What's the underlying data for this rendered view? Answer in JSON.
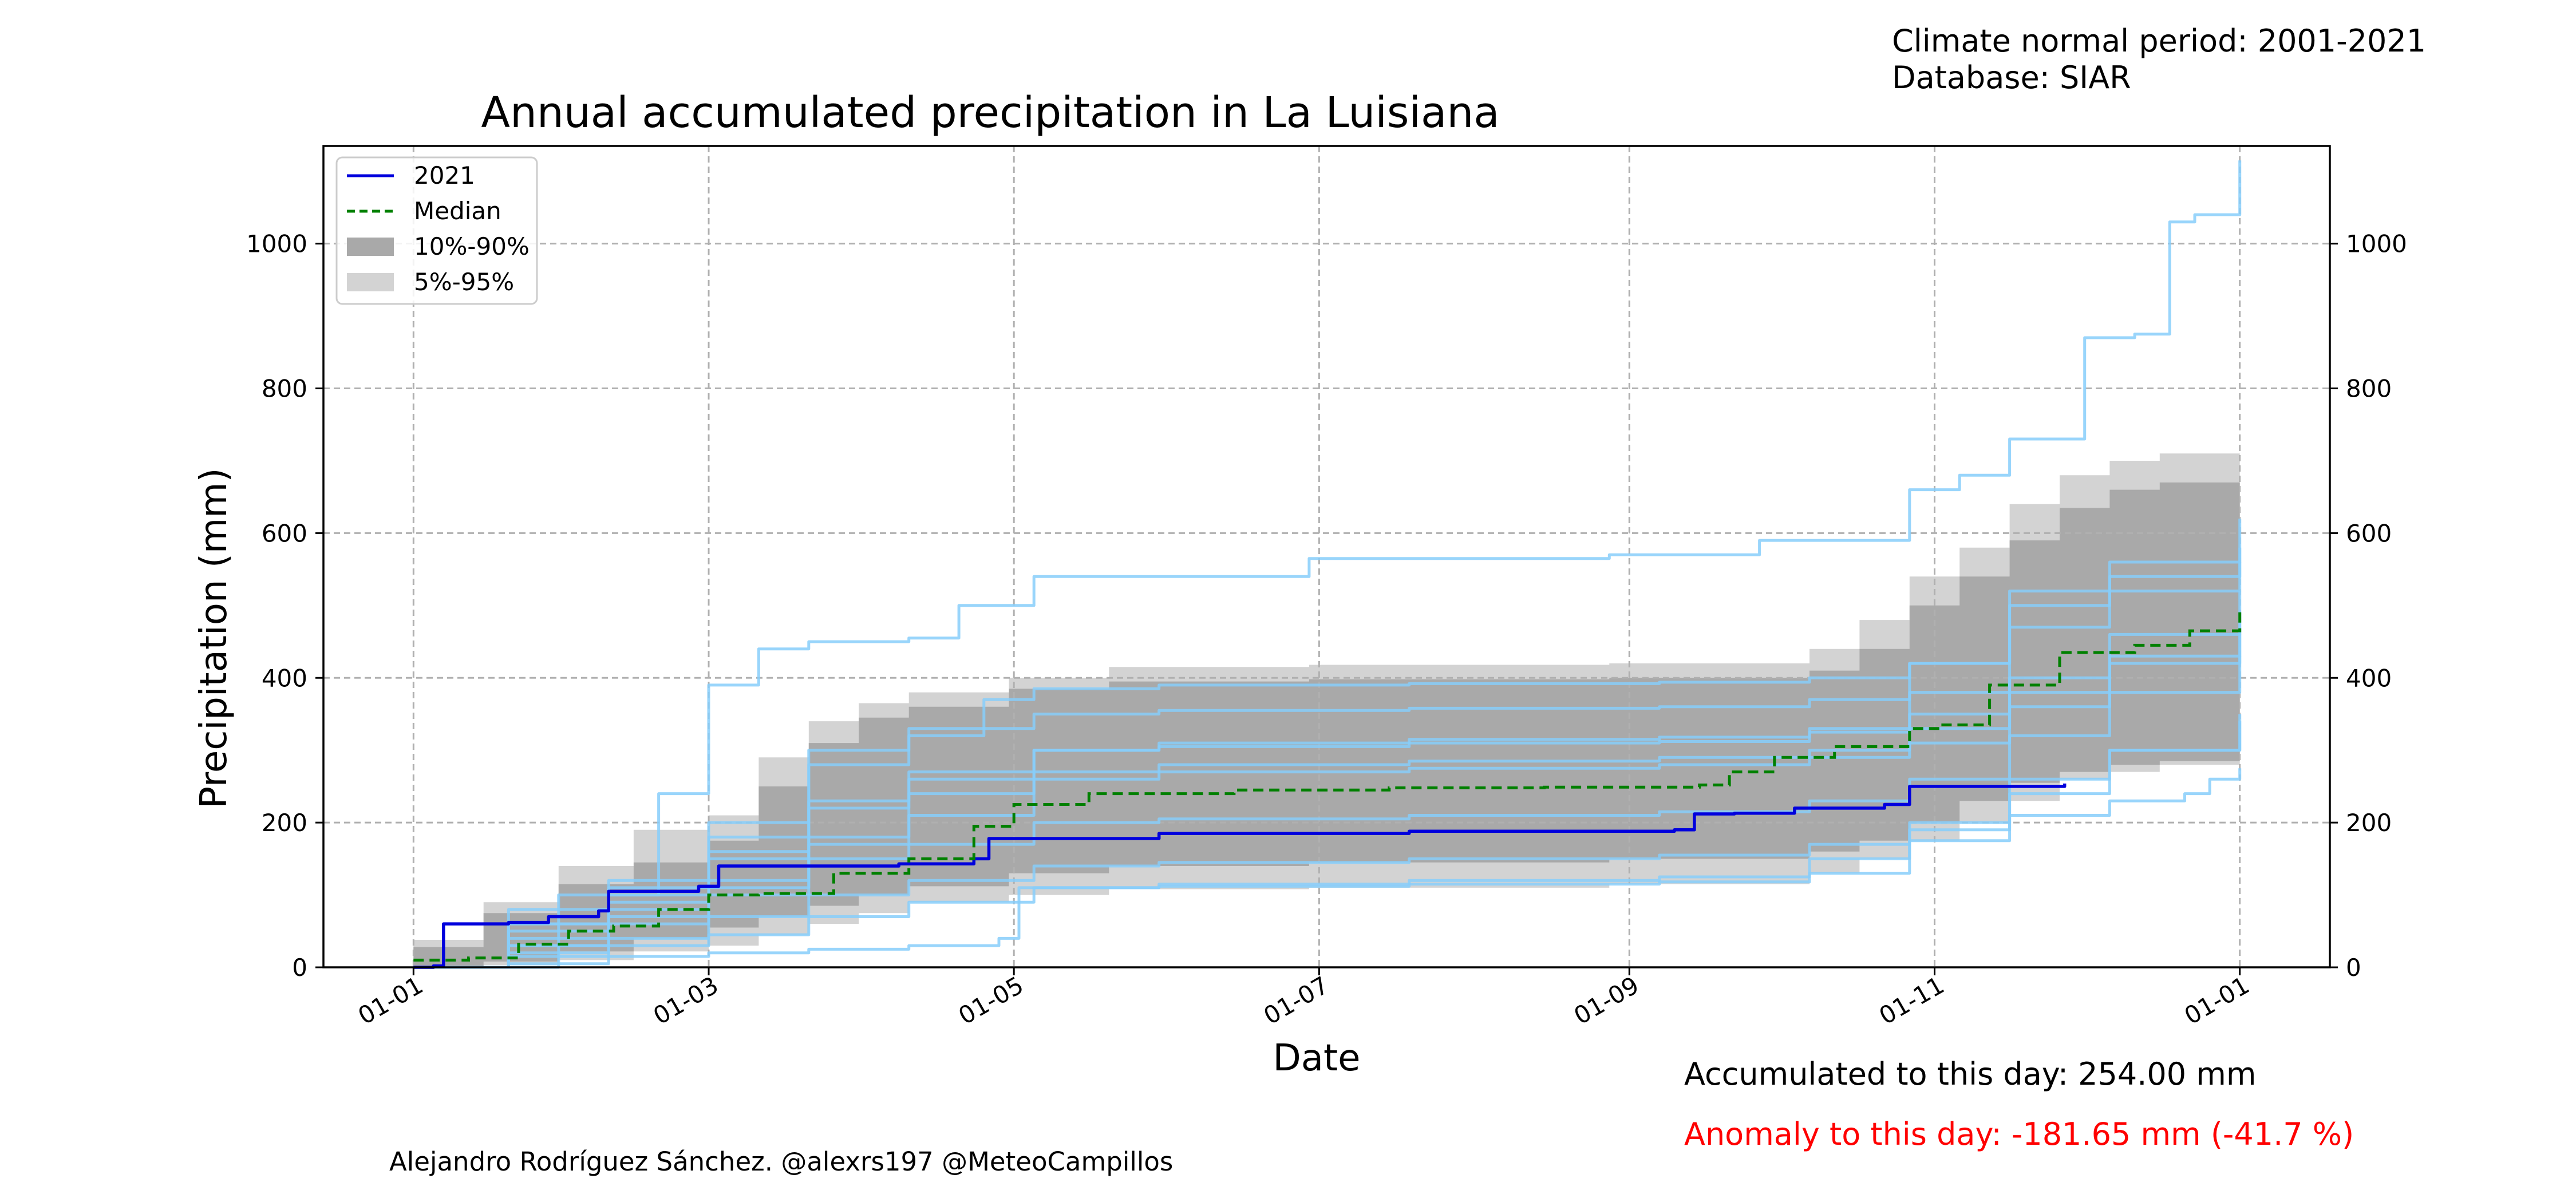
{
  "header": {
    "climate_normal": "Climate normal period: 2001-2021",
    "database": "Database: SIAR"
  },
  "footer": {
    "accumulated": "Accumulated to this day: 254.00 mm",
    "anomaly": "Anomaly to this day: -181.65 mm (-41.7 %)",
    "credit": "Alejandro Rodríguez Sánchez. @alexrs197 @MeteoCampillos"
  },
  "colors": {
    "current_year": "#0000dd",
    "median": "#008000",
    "band_10_90": "#a9a9a9",
    "band_5_95": "#d3d3d3",
    "historical_years": "#87cefa",
    "anomaly_text": "#ff0000"
  },
  "chart_data": {
    "type": "line",
    "title": "Annual accumulated precipitation in La Luisiana",
    "xlabel": "Date",
    "ylabel": "Precipitation (mm)",
    "x_ticks": [
      "01-01",
      "01-03",
      "01-05",
      "01-07",
      "01-09",
      "01-11",
      "01-01"
    ],
    "x_tick_days": [
      1,
      60,
      121,
      182,
      244,
      305,
      366
    ],
    "y_ticks": [
      0,
      200,
      400,
      600,
      800,
      1000
    ],
    "xlim": [
      -17,
      384
    ],
    "ylim": [
      0,
      1135
    ],
    "grid": true,
    "legend_position": "upper-left",
    "legend": [
      "2021",
      "Median",
      "10%-90%",
      "5%-95%"
    ],
    "series": [
      {
        "name": "2021",
        "style": "solid",
        "x": [
          1,
          5,
          7,
          20,
          28,
          38,
          40,
          58,
          62,
          98,
          113,
          116,
          150,
          200,
          253,
          257,
          265,
          277,
          295,
          300,
          331
        ],
        "y": [
          0,
          2,
          60,
          62,
          70,
          78,
          105,
          112,
          140,
          143,
          150,
          178,
          185,
          188,
          190,
          212,
          213,
          220,
          225,
          250,
          254
        ]
      },
      {
        "name": "Median",
        "style": "dashed",
        "x": [
          1,
          12,
          22,
          32,
          41,
          50,
          60,
          70,
          85,
          100,
          113,
          121,
          136,
          165,
          196,
          227,
          258,
          264,
          273,
          285,
          300,
          306,
          316,
          330,
          345,
          356,
          366
        ],
        "y": [
          10,
          13,
          32,
          50,
          57,
          80,
          100,
          102,
          130,
          150,
          195,
          225,
          240,
          245,
          248,
          249,
          252,
          270,
          290,
          305,
          330,
          335,
          390,
          435,
          445,
          465,
          492
        ]
      }
    ],
    "bands": [
      {
        "name": "5%-95%",
        "x": [
          1,
          15,
          30,
          45,
          60,
          70,
          80,
          90,
          100,
          120,
          140,
          180,
          240,
          280,
          290,
          300,
          310,
          320,
          330,
          340,
          350,
          366
        ],
        "upper": [
          38,
          90,
          140,
          190,
          210,
          290,
          340,
          365,
          380,
          400,
          415,
          418,
          420,
          440,
          480,
          540,
          580,
          640,
          680,
          700,
          710,
          715
        ],
        "lower": [
          0,
          3,
          10,
          22,
          30,
          45,
          60,
          75,
          90,
          100,
          108,
          110,
          115,
          130,
          150,
          175,
          200,
          230,
          260,
          270,
          280,
          290
        ]
      },
      {
        "name": "10%-90%",
        "x": [
          1,
          15,
          30,
          45,
          60,
          70,
          80,
          90,
          100,
          120,
          140,
          180,
          240,
          280,
          290,
          300,
          310,
          320,
          330,
          340,
          350,
          366
        ],
        "upper": [
          28,
          75,
          115,
          145,
          175,
          250,
          310,
          345,
          360,
          385,
          395,
          398,
          400,
          410,
          440,
          500,
          540,
          590,
          635,
          660,
          670,
          675
        ],
        "lower": [
          2,
          8,
          22,
          40,
          55,
          70,
          85,
          100,
          112,
          130,
          140,
          145,
          150,
          160,
          175,
          200,
          230,
          255,
          270,
          280,
          285,
          290
        ]
      }
    ],
    "historical": [
      {
        "x": [
          1,
          30,
          50,
          60,
          70,
          80,
          100,
          110,
          125,
          180,
          240,
          270,
          300,
          310,
          320,
          335,
          345,
          352,
          357,
          366
        ],
        "y": [
          0,
          100,
          240,
          390,
          440,
          450,
          455,
          500,
          540,
          565,
          570,
          590,
          660,
          680,
          730,
          870,
          875,
          1030,
          1040,
          1115
        ]
      },
      {
        "x": [
          1,
          20,
          40,
          60,
          80,
          100,
          115,
          125,
          150,
          200,
          250,
          280,
          300,
          320,
          340,
          366
        ],
        "y": [
          0,
          60,
          110,
          180,
          280,
          320,
          370,
          385,
          390,
          392,
          394,
          400,
          420,
          520,
          560,
          620
        ]
      },
      {
        "x": [
          1,
          20,
          40,
          60,
          80,
          100,
          125,
          150,
          200,
          250,
          280,
          300,
          320,
          340,
          366
        ],
        "y": [
          0,
          40,
          90,
          150,
          230,
          270,
          300,
          310,
          315,
          318,
          330,
          380,
          470,
          520,
          580
        ]
      },
      {
        "x": [
          1,
          20,
          40,
          60,
          80,
          100,
          125,
          150,
          200,
          250,
          280,
          300,
          320,
          340,
          366
        ],
        "y": [
          0,
          50,
          80,
          120,
          170,
          210,
          260,
          270,
          275,
          280,
          290,
          310,
          360,
          430,
          520
        ]
      },
      {
        "x": [
          1,
          20,
          40,
          60,
          80,
          100,
          125,
          150,
          200,
          250,
          280,
          300,
          320,
          340,
          366
        ],
        "y": [
          0,
          30,
          60,
          100,
          150,
          170,
          200,
          205,
          210,
          215,
          230,
          260,
          320,
          380,
          430
        ]
      },
      {
        "x": [
          1,
          20,
          40,
          60,
          80,
          100,
          125,
          150,
          200,
          250,
          280,
          300,
          320,
          340,
          366
        ],
        "y": [
          0,
          20,
          40,
          70,
          100,
          120,
          140,
          145,
          150,
          155,
          170,
          190,
          240,
          300,
          350
        ]
      },
      {
        "x": [
          1,
          20,
          40,
          60,
          80,
          100,
          125,
          150,
          200,
          250,
          280,
          300,
          320,
          340,
          366
        ],
        "y": [
          0,
          15,
          30,
          45,
          70,
          90,
          110,
          115,
          120,
          125,
          150,
          200,
          260,
          300,
          340
        ]
      },
      {
        "x": [
          1,
          20,
          40,
          60,
          80,
          100,
          118,
          122,
          150,
          200,
          250,
          280,
          300,
          320,
          340,
          355,
          360,
          366
        ],
        "y": [
          0,
          5,
          15,
          20,
          25,
          30,
          40,
          110,
          112,
          115,
          118,
          130,
          175,
          210,
          230,
          240,
          260,
          275
        ]
      },
      {
        "x": [
          1,
          20,
          40,
          60,
          80,
          100,
          125,
          150,
          200,
          250,
          280,
          300,
          320,
          340,
          366
        ],
        "y": [
          0,
          80,
          120,
          200,
          300,
          330,
          350,
          355,
          358,
          360,
          370,
          420,
          500,
          540,
          560
        ]
      },
      {
        "x": [
          1,
          20,
          40,
          60,
          80,
          100,
          125,
          150,
          200,
          250,
          280,
          300,
          320,
          340,
          366
        ],
        "y": [
          0,
          60,
          100,
          160,
          220,
          260,
          300,
          305,
          310,
          312,
          325,
          350,
          400,
          460,
          490
        ]
      },
      {
        "x": [
          1,
          20,
          40,
          60,
          80,
          100,
          125,
          150,
          200,
          250,
          280,
          300,
          320,
          340,
          366
        ],
        "y": [
          0,
          30,
          70,
          110,
          180,
          240,
          270,
          280,
          285,
          290,
          300,
          330,
          380,
          420,
          460
        ]
      }
    ]
  }
}
